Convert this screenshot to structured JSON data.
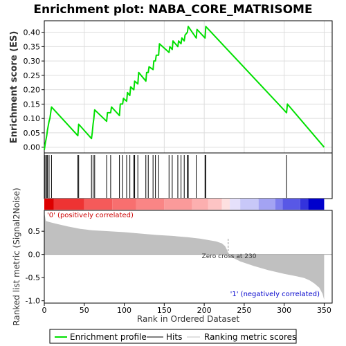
{
  "chart_data": {
    "type": "line",
    "title": "Enrichment plot: NABA_CORE_MATRISOME",
    "enrichment_panel": {
      "ylabel": "Enrichment score (ES)",
      "ylim": [
        -0.02,
        0.44
      ],
      "yticks": [
        "0.00",
        "0.05",
        "0.10",
        "0.15",
        "0.20",
        "0.25",
        "0.30",
        "0.35",
        "0.40"
      ],
      "grid": true,
      "line_color": "#00e000",
      "series": {
        "name": "Enrichment profile",
        "x": [
          0,
          1,
          3,
          4,
          6,
          7,
          9,
          42,
          43,
          59,
          60,
          61,
          62,
          63,
          78,
          79,
          83,
          84,
          94,
          95,
          98,
          99,
          103,
          104,
          107,
          108,
          112,
          113,
          117,
          118,
          127,
          128,
          130,
          131,
          136,
          137,
          139,
          140,
          143,
          144,
          156,
          157,
          160,
          161,
          167,
          168,
          171,
          172,
          175,
          176,
          179,
          180,
          190,
          191,
          201,
          202,
          303,
          304,
          350
        ],
        "y": [
          -0.01,
          0.01,
          0.04,
          0.06,
          0.09,
          0.1,
          0.14,
          0.04,
          0.08,
          0.03,
          0.05,
          0.08,
          0.1,
          0.13,
          0.09,
          0.12,
          0.12,
          0.14,
          0.11,
          0.15,
          0.15,
          0.17,
          0.16,
          0.19,
          0.18,
          0.21,
          0.2,
          0.23,
          0.22,
          0.26,
          0.23,
          0.26,
          0.26,
          0.28,
          0.27,
          0.3,
          0.3,
          0.32,
          0.32,
          0.36,
          0.33,
          0.35,
          0.34,
          0.37,
          0.35,
          0.37,
          0.36,
          0.38,
          0.37,
          0.39,
          0.4,
          0.42,
          0.38,
          0.41,
          0.38,
          0.42,
          0.12,
          0.15,
          0.0
        ]
      }
    },
    "hits": [
      1,
      3,
      4,
      6,
      9,
      42,
      43,
      59,
      61,
      63,
      78,
      83,
      94,
      98,
      103,
      107,
      112,
      113,
      117,
      127,
      130,
      136,
      139,
      143,
      156,
      160,
      167,
      171,
      175,
      179,
      180,
      190,
      201,
      202,
      303
    ],
    "colorbar": [
      {
        "from": 0,
        "to": 12,
        "color": "#dd0000"
      },
      {
        "from": 12,
        "to": 50,
        "color": "#ee3333"
      },
      {
        "from": 50,
        "to": 85,
        "color": "#f55a5a"
      },
      {
        "from": 85,
        "to": 115,
        "color": "#f86f6f"
      },
      {
        "from": 115,
        "to": 150,
        "color": "#fa8585"
      },
      {
        "from": 150,
        "to": 185,
        "color": "#fb9a9a"
      },
      {
        "from": 185,
        "to": 205,
        "color": "#fcafaf"
      },
      {
        "from": 205,
        "to": 222,
        "color": "#fdc4c4"
      },
      {
        "from": 222,
        "to": 232,
        "color": "#fde0e0"
      },
      {
        "from": 232,
        "to": 245,
        "color": "#e5e0fb"
      },
      {
        "from": 245,
        "to": 268,
        "color": "#c8c8f8"
      },
      {
        "from": 268,
        "to": 289,
        "color": "#a3a3f3"
      },
      {
        "from": 289,
        "to": 298,
        "color": "#7d7dee"
      },
      {
        "from": 298,
        "to": 320,
        "color": "#5858e6"
      },
      {
        "from": 320,
        "to": 330,
        "color": "#3333dd"
      },
      {
        "from": 330,
        "to": 350,
        "color": "#0000cc"
      }
    ],
    "metric_panel": {
      "ylabel": "Ranked list metric (Signal2Noise)",
      "ylim": [
        -1.05,
        0.95
      ],
      "yticks": [
        "-1.0",
        "-0.5",
        "0.0",
        "0.5"
      ],
      "xlabel": "Rank in Ordered Dataset",
      "xticks": [
        "0",
        "50",
        "100",
        "150",
        "200",
        "250",
        "300",
        "350"
      ],
      "xlim": [
        0,
        360
      ],
      "fill_color": "#c0c0c0",
      "metric": {
        "x": [
          0,
          2,
          6,
          15,
          30,
          45,
          60,
          80,
          100,
          120,
          140,
          160,
          180,
          195,
          205,
          215,
          222,
          226,
          229,
          230,
          232,
          245,
          262,
          280,
          300,
          315,
          325,
          332,
          338,
          344,
          348,
          350
        ],
        "y": [
          0.9,
          0.72,
          0.7,
          0.66,
          0.6,
          0.55,
          0.52,
          0.5,
          0.48,
          0.45,
          0.42,
          0.4,
          0.37,
          0.34,
          0.31,
          0.28,
          0.24,
          0.18,
          0.08,
          0.0,
          -0.04,
          -0.15,
          -0.25,
          -0.34,
          -0.42,
          -0.47,
          -0.51,
          -0.56,
          -0.63,
          -0.72,
          -0.85,
          -0.98
        ]
      },
      "label_positive": "'0' (positively correlated)",
      "label_negative": "'1' (negatively correlated)",
      "zero_cross_label": "Zero cross at 230",
      "zero_cross": 230
    },
    "legend": {
      "placement": "bottom",
      "items": [
        {
          "label": "Enrichment profile",
          "kind": "green-line"
        },
        {
          "label": "Hits",
          "kind": "black-line"
        },
        {
          "label": "Ranking metric scores",
          "kind": "gray-line"
        }
      ]
    }
  }
}
